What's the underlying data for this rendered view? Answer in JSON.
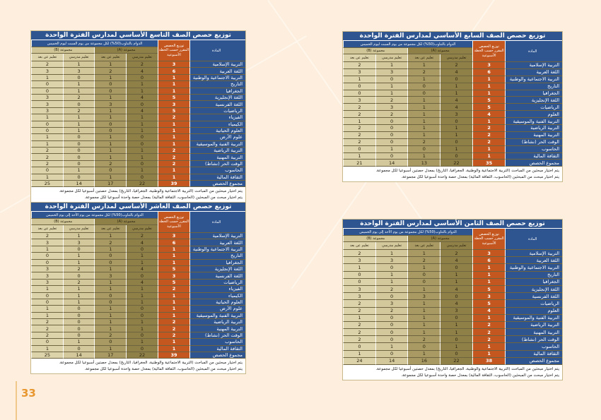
{
  "headers": {
    "subject": "المادة",
    "weekly": "توزيع الحصص المقرر حسب الخطة الأسبوعية",
    "group_a": "مجموعة (A)",
    "group_b": "مجموعة (B)",
    "in_school": "تعليم مدرسي",
    "remote": "تعليم عن بعد"
  },
  "page_number": "33",
  "colors": {
    "blue": "#2e5590",
    "orange": "#c4571f",
    "olive": "#8f8048",
    "beige": "#d3c89b"
  },
  "tables": [
    {
      "title": "توزيع حصص الصف التاسع الأساسي لمدارس الفترة الواحدة",
      "schedule": "الدوام بالتناوب(50%) لكل مجموعة من يوم السبت ليوم الخميس",
      "rows": [
        [
          "التربية الإسلامية",
          "3",
          "2",
          "1",
          "1",
          "2"
        ],
        [
          "اللغة العربية",
          "6",
          "4",
          "2",
          "3",
          "3"
        ],
        [
          "التربية الاجتماعية والوطنية",
          "1",
          "0",
          "1",
          "0",
          "1"
        ],
        [
          "التاريخ",
          "1",
          "1",
          "0",
          "1",
          "0"
        ],
        [
          "الجغرافيا",
          "1",
          "1",
          "0",
          "1",
          "0"
        ],
        [
          "اللغة الإنجليزية",
          "5",
          "4",
          "1",
          "2",
          "3"
        ],
        [
          "اللغة الفرنسية",
          "3",
          "0",
          "3",
          "0",
          "3"
        ],
        [
          "الرياضيات",
          "5",
          "4",
          "1",
          "2",
          "3"
        ],
        [
          "الفيزياء",
          "2",
          "1",
          "1",
          "1",
          "1"
        ],
        [
          "الكيمياء",
          "1",
          "1",
          "0",
          "1",
          "0"
        ],
        [
          "العلوم الحياتية",
          "1",
          "1",
          "0",
          "1",
          "0"
        ],
        [
          "علوم الأرض",
          "1",
          "0",
          "1",
          "0",
          "1"
        ],
        [
          "التربية الفنية والموسيقية",
          "1",
          "0",
          "1",
          "0",
          "1"
        ],
        [
          "التربية الرياضية",
          "2",
          "1",
          "1",
          "0",
          "2"
        ],
        [
          "التربية المهنية",
          "2",
          "1",
          "1",
          "0",
          "2"
        ],
        [
          "الوقت الحر (نشاط)",
          "2",
          "0",
          "2",
          "0",
          "2"
        ],
        [
          "الحاسوب",
          "1",
          "1",
          "0",
          "1",
          "0"
        ],
        [
          "الثقافة المالية",
          "1",
          "0",
          "1",
          "0",
          "1"
        ],
        [
          "مجموع الحصص",
          "39",
          "22",
          "17",
          "14",
          "25"
        ]
      ],
      "notes": [
        "يتم اختيار مبحثين من المباحث (التربية الاجتماعية والوطنية، الجغرافيا، التاريخ) بمعدل حصتين أسبوعيا لكل مجموعة.",
        "يتم اختيار مبحث من المبحثين (الحاسوب، الثقافة المالية) بمعدل حصة واحدة أسبوعيا لكل مجموعة."
      ]
    },
    {
      "title": "توزيع حصص الصف العاشر الأساسي لمدارس الفترة الواحدة",
      "schedule": "الدوام بالتناوب(50%) لكل مجموعة من يوم الأحد إلى يوم الخميس",
      "rows": [
        [
          "التربية الإسلامية",
          "3",
          "2",
          "1",
          "1",
          "2"
        ],
        [
          "اللغة العربية",
          "6",
          "4",
          "2",
          "3",
          "3"
        ],
        [
          "التربية الاجتماعية والوطنية",
          "1",
          "0",
          "1",
          "0",
          "1"
        ],
        [
          "التاريخ",
          "1",
          "1",
          "0",
          "1",
          "0"
        ],
        [
          "الجغرافيا",
          "1",
          "1",
          "0",
          "1",
          "0"
        ],
        [
          "اللغة الإنجليزية",
          "5",
          "4",
          "1",
          "2",
          "3"
        ],
        [
          "اللغة الفرنسية",
          "3",
          "0",
          "3",
          "0",
          "3"
        ],
        [
          "الرياضيات",
          "5",
          "4",
          "1",
          "2",
          "3"
        ],
        [
          "الفيزياء",
          "2",
          "1",
          "1",
          "1",
          "1"
        ],
        [
          "الكيمياء",
          "1",
          "1",
          "0",
          "1",
          "0"
        ],
        [
          "العلوم الحياتية",
          "1",
          "1",
          "0",
          "1",
          "0"
        ],
        [
          "علوم الأرض",
          "1",
          "0",
          "1",
          "0",
          "1"
        ],
        [
          "التربية الفنية والموسيقية",
          "1",
          "0",
          "1",
          "0",
          "1"
        ],
        [
          "التربية الرياضية",
          "2",
          "1",
          "1",
          "0",
          "2"
        ],
        [
          "التربية المهنية",
          "2",
          "1",
          "1",
          "0",
          "2"
        ],
        [
          "الوقت الحر (نشاط)",
          "2",
          "0",
          "2",
          "0",
          "2"
        ],
        [
          "الحاسوب",
          "1",
          "1",
          "0",
          "1",
          "0"
        ],
        [
          "الثقافة المالية",
          "1",
          "0",
          "1",
          "0",
          "1"
        ],
        [
          "مجموع الحصص",
          "39",
          "22",
          "17",
          "14",
          "25"
        ]
      ],
      "notes": [
        "يتم اختيار مبحثين من المباحث (التربية الاجتماعية والوطنية، الجغرافيا، التاريخ) بمعدل حصتين أسبوعيا لكل مجموعة.",
        "يتم اختيار مبحث من المبحثين (الحاسوب، الثقافة المالية) بمعدل حصة واحدة أسبوعيا لكل مجموعة."
      ]
    },
    {
      "title": "توزيع حصص الصف السابع الأساسي لمدارس الفترة الواحدة",
      "schedule": "الدوام بالتناوب(50%) لكل مجموعة من يوم السبت ليوم الخميس",
      "rows": [
        [
          "التربية الإسلامية",
          "3",
          "2",
          "1",
          "1",
          "2"
        ],
        [
          "اللغة العربية",
          "6",
          "4",
          "2",
          "3",
          "3"
        ],
        [
          "التربية الاجتماعية والوطنية",
          "1",
          "0",
          "1",
          "0",
          "1"
        ],
        [
          "التاريخ",
          "1",
          "1",
          "0",
          "1",
          "0"
        ],
        [
          "الجغرافيا",
          "1",
          "1",
          "0",
          "1",
          "0"
        ],
        [
          "اللغة الإنجليزية",
          "5",
          "4",
          "1",
          "2",
          "3"
        ],
        [
          "الرياضيات",
          "5",
          "4",
          "1",
          "3",
          "2"
        ],
        [
          "العلوم",
          "4",
          "3",
          "1",
          "2",
          "2"
        ],
        [
          "التربية الفنية والموسيقية",
          "1",
          "0",
          "1",
          "0",
          "1"
        ],
        [
          "التربية الرياضية",
          "2",
          "1",
          "1",
          "0",
          "2"
        ],
        [
          "التربية المهنية",
          "2",
          "1",
          "1",
          "0",
          "2"
        ],
        [
          "الوقت الحر (نشاط)",
          "2",
          "0",
          "2",
          "0",
          "2"
        ],
        [
          "الحاسوب",
          "1",
          "1",
          "0",
          "1",
          "0"
        ],
        [
          "الثقافة المالية",
          "1",
          "0",
          "1",
          "0",
          "1"
        ],
        [
          "مجموع الحصص",
          "35",
          "22",
          "13",
          "14",
          "21"
        ]
      ],
      "notes": [
        "يتم اختيار مبحثين من المباحث (التربية الاجتماعية والوطنية، الجغرافيا، التاريخ) بمعدل حصتين أسبوعيا لكل مجموعة.",
        "يتم اختيار مبحث من المبحثين (الحاسوب، الثقافة المالية) بمعدل حصة واحدة أسبوعيا لكل مجموعة."
      ]
    },
    {
      "title": "توزيع حصص الصف الثامن الأساسي لمدارس الفترة الواحدة",
      "schedule": "الدوام بالتناوب(50%) لكل مجموعة من يوم الأحد إلى يوم الخميس",
      "rows": [
        [
          "التربية الإسلامية",
          "3",
          "2",
          "1",
          "1",
          "2"
        ],
        [
          "اللغة العربية",
          "6",
          "4",
          "2",
          "3",
          "3"
        ],
        [
          "التربية الاجتماعية والوطنية",
          "1",
          "0",
          "1",
          "0",
          "1"
        ],
        [
          "التاريخ",
          "1",
          "1",
          "0",
          "1",
          "0"
        ],
        [
          "الجغرافيا",
          "1",
          "1",
          "0",
          "1",
          "0"
        ],
        [
          "اللغة الإنجليزية",
          "5",
          "4",
          "1",
          "2",
          "3"
        ],
        [
          "اللغة الفرنسية",
          "3",
          "0",
          "3",
          "0",
          "3"
        ],
        [
          "الرياضيات",
          "5",
          "4",
          "1",
          "3",
          "2"
        ],
        [
          "العلوم",
          "4",
          "3",
          "1",
          "2",
          "2"
        ],
        [
          "التربية الفنية والموسيقية",
          "1",
          "0",
          "1",
          "0",
          "1"
        ],
        [
          "التربية الرياضية",
          "2",
          "1",
          "1",
          "0",
          "2"
        ],
        [
          "التربية المهنية",
          "2",
          "1",
          "1",
          "0",
          "2"
        ],
        [
          "الوقت الحر (نشاط)",
          "2",
          "0",
          "2",
          "0",
          "2"
        ],
        [
          "الحاسوب",
          "1",
          "1",
          "0",
          "1",
          "0"
        ],
        [
          "الثقافة المالية",
          "1",
          "0",
          "1",
          "0",
          "1"
        ],
        [
          "مجموع الحصص",
          "38",
          "22",
          "16",
          "14",
          "24"
        ]
      ],
      "notes": [
        "يتم اختيار مبحثين من المباحث (التربية الاجتماعية والوطنية، الجغرافيا، التاريخ) بمعدل حصتين أسبوعيا لكل مجموعة.",
        "يتم اختيار مبحث من المبحثين (الحاسوب، الثقافة المالية) بمعدل حصة واحدة أسبوعيا لكل مجموعة."
      ]
    }
  ]
}
